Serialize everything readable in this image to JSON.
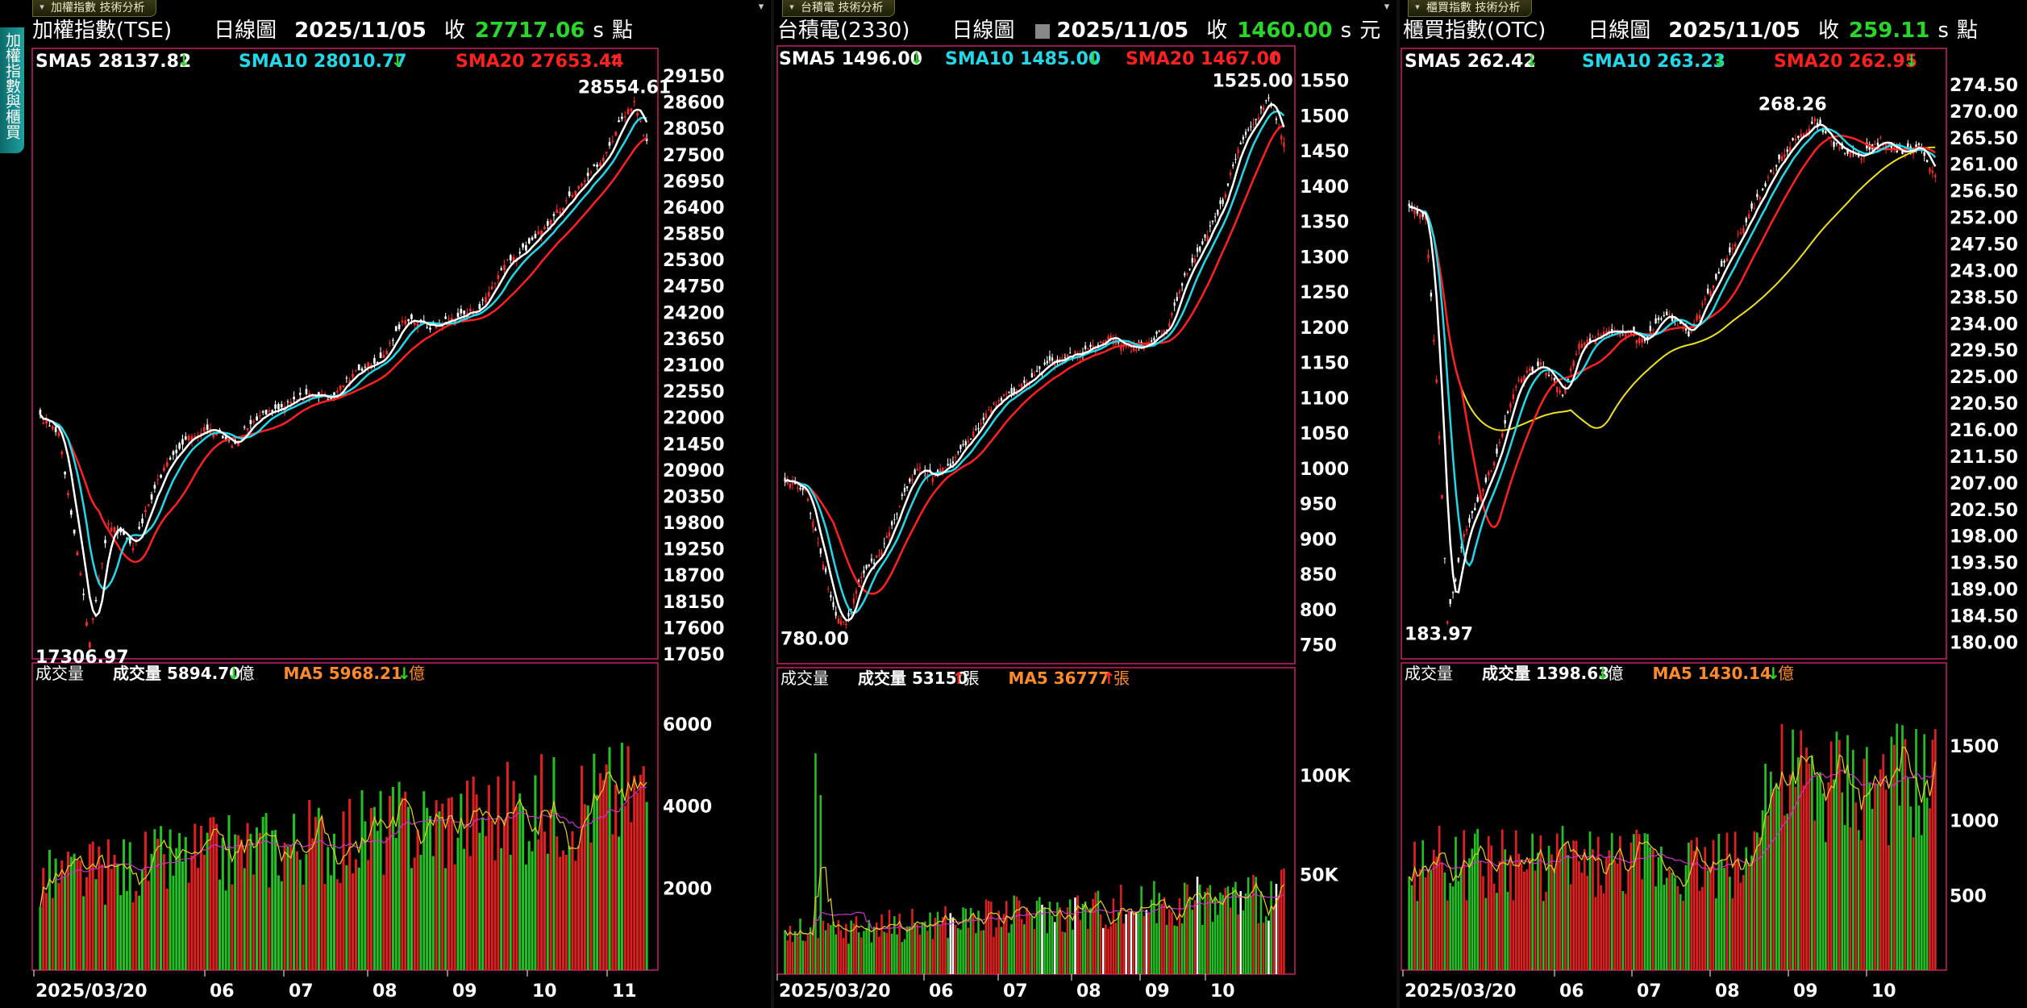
{
  "side_tab": "加權指數與櫃買",
  "panels": [
    {
      "tab": "加權指數 技術分析",
      "title": "加權指數(TSE)",
      "period": "日線圖",
      "date": "2025/11/05",
      "close_label": "收",
      "close": "27717.06",
      "s_mark": "s",
      "unit": "點",
      "has_box": false,
      "sma5": "SMA5 28137.82",
      "sma10": "SMA10 28010.77",
      "sma20": "SMA20 27653.44",
      "sma_dirs": [
        "down",
        "down",
        "up"
      ],
      "high_label": "28554.61",
      "low_label": "17306.97",
      "price_ticks": [
        "29150",
        "28600",
        "28050",
        "27500",
        "26950",
        "26400",
        "25850",
        "25300",
        "24750",
        "24200",
        "23650",
        "23100",
        "22550",
        "22000",
        "21450",
        "20900",
        "20350",
        "19800",
        "19250",
        "18700",
        "18150",
        "17600",
        "17050"
      ],
      "vol_label": "成交量",
      "vol_value": "成交量 5894.70",
      "vol_dir": "down",
      "vol_unit": "億",
      "vol_ma": "MA5 5968.21",
      "vol_ma_dir": "down",
      "vol_ma_unit": "億",
      "vol_ticks": [
        "6000",
        "4000",
        "2000"
      ],
      "date_ticks": [
        "2025/03/20",
        "06",
        "07",
        "08",
        "09",
        "10",
        "11"
      ]
    },
    {
      "tab": "台積電 技術分析",
      "title": "台積電(2330)",
      "period": "日線圖",
      "date": "2025/11/05",
      "close_label": "收",
      "close": "1460.00",
      "s_mark": "s",
      "unit": "元",
      "has_box": true,
      "sma5": "SMA5 1496.00",
      "sma10": "SMA10 1485.00",
      "sma20": "SMA20 1467.00",
      "sma_dirs": [
        "down",
        "down",
        "up"
      ],
      "high_label": "1525.00",
      "low_label": "780.00",
      "price_ticks": [
        "1550",
        "1500",
        "1450",
        "1400",
        "1350",
        "1300",
        "1250",
        "1200",
        "1150",
        "1100",
        "1050",
        "1000",
        "950",
        "900",
        "850",
        "800",
        "750"
      ],
      "vol_label": "成交量",
      "vol_value": "成交量 53150",
      "vol_dir": "up",
      "vol_unit": "張",
      "vol_ma": "MA5 36777",
      "vol_ma_dir": "up",
      "vol_ma_unit": "張",
      "vol_ticks": [
        "100K",
        "50K"
      ],
      "date_ticks": [
        "2025/03/20",
        "06",
        "07",
        "08",
        "09",
        "10"
      ]
    },
    {
      "tab": "櫃買指數 技術分析",
      "title": "櫃買指數(OTC)",
      "period": "日線圖",
      "date": "2025/11/05",
      "close_label": "收",
      "close": "259.11",
      "s_mark": "s",
      "unit": "點",
      "has_box": false,
      "sma5": "SMA5 262.42",
      "sma10": "SMA10 263.23",
      "sma20": "SMA20 262.95",
      "sma_dirs": [
        "down",
        "down",
        "down"
      ],
      "high_label": "268.26",
      "low_label": "183.97",
      "price_ticks": [
        "274.50",
        "270.00",
        "265.50",
        "261.00",
        "256.50",
        "252.00",
        "247.50",
        "243.00",
        "238.50",
        "234.00",
        "229.50",
        "225.00",
        "220.50",
        "216.00",
        "211.50",
        "207.00",
        "202.50",
        "198.00",
        "193.50",
        "189.00",
        "184.50",
        "180.00"
      ],
      "vol_label": "成交量",
      "vol_value": "成交量 1398.63",
      "vol_dir": "down",
      "vol_unit": "億",
      "vol_ma": "MA5 1430.14",
      "vol_ma_dir": "down",
      "vol_ma_unit": "億",
      "vol_ticks": [
        "1500",
        "1000",
        "500"
      ],
      "date_ticks": [
        "2025/03/20",
        "06",
        "07",
        "08",
        "09",
        "10"
      ]
    }
  ],
  "colors": {
    "up": "#ff2a2a",
    "down": "#2bd62b",
    "sma5": "#ffffff",
    "sma10": "#22d8e8",
    "sma20": "#ff2020",
    "sma60": "#f0e020",
    "vol_ma": "#ff8a2a",
    "frame": "#c8206a",
    "vol_ma_line1": "#e8d020",
    "vol_ma_line2": "#cc33cc"
  },
  "chart_data": [
    {
      "type": "candlestick",
      "title": "加權指數(TSE)",
      "x_start": "2025/03/20",
      "x_end": "2025/11/05",
      "ylim": [
        17050,
        29150
      ],
      "high": 28554.61,
      "low": 17306.97,
      "close": 27717.06,
      "series": [
        {
          "name": "SMA5",
          "last": 28137.82
        },
        {
          "name": "SMA10",
          "last": 28010.77
        },
        {
          "name": "SMA20",
          "last": 27653.44
        }
      ],
      "path_points": [
        [
          0,
          22000
        ],
        [
          6,
          21700
        ],
        [
          12,
          19200
        ],
        [
          16,
          17306.97
        ],
        [
          22,
          19800
        ],
        [
          30,
          19300
        ],
        [
          38,
          20700
        ],
        [
          46,
          21500
        ],
        [
          54,
          21800
        ],
        [
          62,
          21450
        ],
        [
          70,
          22000
        ],
        [
          78,
          22200
        ],
        [
          86,
          22500
        ],
        [
          94,
          22400
        ],
        [
          102,
          23000
        ],
        [
          110,
          23200
        ],
        [
          118,
          24100
        ],
        [
          126,
          23900
        ],
        [
          134,
          24100
        ],
        [
          142,
          24300
        ],
        [
          150,
          25200
        ],
        [
          158,
          25600
        ],
        [
          166,
          26200
        ],
        [
          174,
          26900
        ],
        [
          182,
          27400
        ],
        [
          188,
          28300
        ],
        [
          192,
          28554.61
        ],
        [
          196,
          27717.06
        ]
      ],
      "volume": {
        "ylim": [
          0,
          7300
        ],
        "ma5_last": 5968.21,
        "last": 5894.7
      }
    },
    {
      "type": "candlestick",
      "title": "台積電(2330)",
      "x_start": "2025/03/20",
      "x_end": "2025/11/05",
      "ylim": [
        730,
        1560
      ],
      "high": 1525.0,
      "low": 780.0,
      "close": 1460.0,
      "series": [
        {
          "name": "SMA5",
          "last": 1496.0
        },
        {
          "name": "SMA10",
          "last": 1485.0
        },
        {
          "name": "SMA20",
          "last": 1467.0
        }
      ],
      "path_points": [
        [
          0,
          985
        ],
        [
          8,
          970
        ],
        [
          14,
          880
        ],
        [
          20,
          790
        ],
        [
          24,
          780
        ],
        [
          30,
          850
        ],
        [
          38,
          880
        ],
        [
          46,
          960
        ],
        [
          52,
          1000
        ],
        [
          58,
          990
        ],
        [
          66,
          1010
        ],
        [
          74,
          1050
        ],
        [
          82,
          1090
        ],
        [
          90,
          1110
        ],
        [
          98,
          1130
        ],
        [
          104,
          1150
        ],
        [
          112,
          1160
        ],
        [
          120,
          1170
        ],
        [
          128,
          1185
        ],
        [
          136,
          1170
        ],
        [
          142,
          1175
        ],
        [
          150,
          1200
        ],
        [
          158,
          1280
        ],
        [
          166,
          1330
        ],
        [
          172,
          1380
        ],
        [
          178,
          1450
        ],
        [
          184,
          1490
        ],
        [
          190,
          1525
        ],
        [
          196,
          1460
        ]
      ],
      "volume": {
        "ylim": [
          0,
          150000
        ],
        "ma5_last": 36777,
        "last": 53150
      }
    },
    {
      "type": "candlestick",
      "title": "櫃買指數(OTC)",
      "x_start": "2025/03/20",
      "x_end": "2025/11/05",
      "ylim": [
        178,
        276
      ],
      "high": 268.26,
      "low": 183.97,
      "close": 259.11,
      "series": [
        {
          "name": "SMA5",
          "last": 262.42
        },
        {
          "name": "SMA10",
          "last": 263.23
        },
        {
          "name": "SMA20",
          "last": 262.95
        }
      ],
      "path_points": [
        [
          0,
          254
        ],
        [
          6,
          252
        ],
        [
          10,
          225
        ],
        [
          14,
          183.97
        ],
        [
          20,
          198
        ],
        [
          26,
          205
        ],
        [
          32,
          212
        ],
        [
          40,
          225
        ],
        [
          48,
          227
        ],
        [
          56,
          222
        ],
        [
          62,
          230
        ],
        [
          70,
          232
        ],
        [
          78,
          233
        ],
        [
          86,
          231
        ],
        [
          94,
          236
        ],
        [
          102,
          232
        ],
        [
          110,
          240
        ],
        [
          118,
          247
        ],
        [
          126,
          254
        ],
        [
          134,
          261
        ],
        [
          140,
          265
        ],
        [
          148,
          268.26
        ],
        [
          156,
          264
        ],
        [
          164,
          262
        ],
        [
          172,
          265
        ],
        [
          180,
          263
        ],
        [
          186,
          264
        ],
        [
          192,
          259.11
        ]
      ],
      "volume": {
        "ylim": [
          0,
          2000
        ],
        "ma5_last": 1430.14,
        "last": 1398.63
      }
    }
  ]
}
